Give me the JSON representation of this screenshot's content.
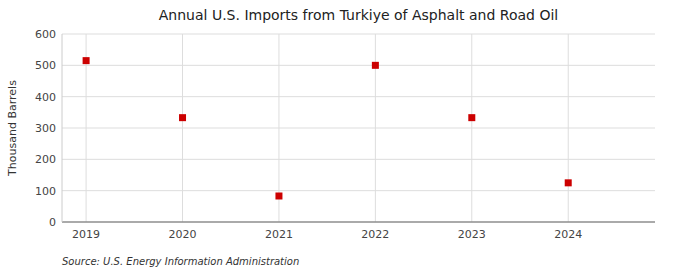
{
  "chart_data": {
    "type": "scatter",
    "title": "Annual U.S. Imports from Turkiye of Asphalt and Road Oil",
    "ylabel": "Thousand Barrels",
    "source": "Source: U.S. Energy Information Administration",
    "x": [
      2019,
      2020,
      2021,
      2022,
      2023,
      2024
    ],
    "values": [
      515,
      333,
      83,
      500,
      333,
      125
    ],
    "color": "#cc0000",
    "marker": "square",
    "xlim": [
      2018.75,
      2024.9
    ],
    "xticks": [
      2019,
      2020,
      2021,
      2022,
      2023,
      2024
    ],
    "ylim": [
      0,
      600
    ],
    "yticks": [
      0,
      100,
      200,
      300,
      400,
      500,
      600
    ],
    "grid": true
  }
}
